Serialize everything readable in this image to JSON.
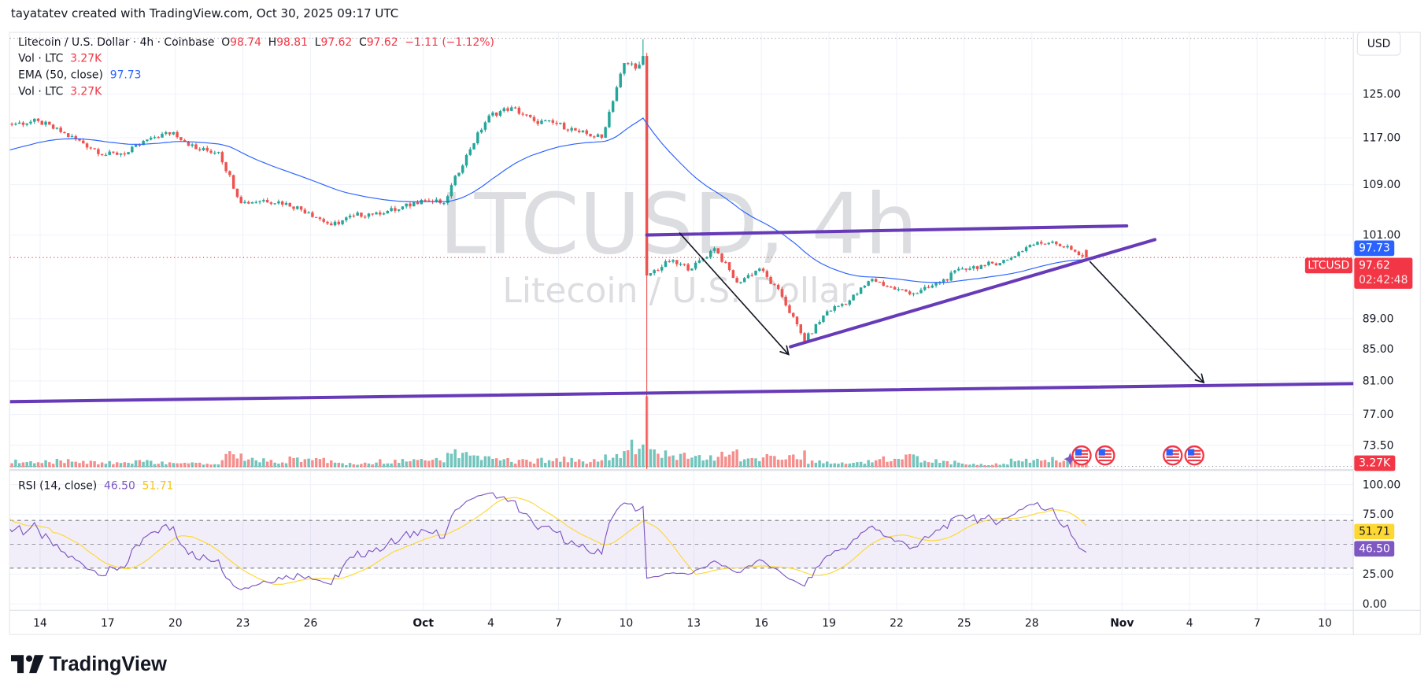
{
  "header": {
    "attribution": "tayatatev created with TradingView.com, Oct 30, 2025 09:17 UTC",
    "as_of": "2025-10-30T09:17"
  },
  "legend": {
    "symbol": "Litecoin / U.S. Dollar · 4h · Coinbase",
    "o_label": "O",
    "o": "98.74",
    "h_label": "H",
    "h": "98.81",
    "l_label": "L",
    "l": "97.62",
    "c_label": "C",
    "c": "97.62",
    "change": "−1.11 (−1.12%)",
    "vol_label": "Vol · LTC",
    "vol": "3.27K",
    "ema_label": "EMA (50, close)",
    "ema": "97.73",
    "vol2_label": "Vol · LTC",
    "vol2": "3.27K"
  },
  "currency_button": "USD",
  "watermark": {
    "ticker": "LTCUSD, 4h",
    "name": "Litecoin / U.S. Dollar"
  },
  "price_axis": {
    "scale": "log",
    "ticks": [
      125,
      117,
      109,
      101,
      89,
      85,
      81,
      77,
      73.5
    ],
    "ema_label": "97.73",
    "price_label": "97.62",
    "countdown": "02:42:48",
    "ticker_label": "LTCUSD",
    "volume_label": "3.27K"
  },
  "time_axis": [
    {
      "label": "14",
      "date": "2025-09-14"
    },
    {
      "label": "17",
      "date": "2025-09-17"
    },
    {
      "label": "20",
      "date": "2025-09-20"
    },
    {
      "label": "23",
      "date": "2025-09-23"
    },
    {
      "label": "26",
      "date": "2025-09-26"
    },
    {
      "label": "Oct",
      "date": "2025-10-01"
    },
    {
      "label": "4",
      "date": "2025-10-04"
    },
    {
      "label": "7",
      "date": "2025-10-07"
    },
    {
      "label": "10",
      "date": "2025-10-10"
    },
    {
      "label": "13",
      "date": "2025-10-13"
    },
    {
      "label": "16",
      "date": "2025-10-16"
    },
    {
      "label": "19",
      "date": "2025-10-19"
    },
    {
      "label": "22",
      "date": "2025-10-22"
    },
    {
      "label": "25",
      "date": "2025-10-25"
    },
    {
      "label": "28",
      "date": "2025-10-28"
    },
    {
      "label": "Nov",
      "date": "2025-11-01"
    },
    {
      "label": "4",
      "date": "2025-11-04"
    },
    {
      "label": "7",
      "date": "2025-11-07"
    },
    {
      "label": "10",
      "date": "2025-11-10"
    }
  ],
  "rsi": {
    "label": "RSI (14, close)",
    "value": "46.50",
    "ma_value": "51.71",
    "ticks": [
      "100.00",
      "75.00",
      "25.00",
      "0.00"
    ],
    "band": [
      30,
      70
    ]
  },
  "events": [
    {
      "icon": "us-flag-icon",
      "date": "2025-10-30T05:00"
    },
    {
      "icon": "us-flag-icon",
      "date": "2025-10-31T06:00"
    },
    {
      "icon": "us-flag-icon",
      "date": "2025-11-03T06:00"
    },
    {
      "icon": "us-flag-icon",
      "date": "2025-11-04T05:00"
    }
  ],
  "drawings": [
    {
      "type": "trendline",
      "name": "resistance-line",
      "color": "#673ab7",
      "from": {
        "date": "2025-10-10T22:00",
        "price": 101.0
      },
      "to": {
        "date": "2025-11-01T05:00",
        "price": 102.4
      }
    },
    {
      "type": "trendline",
      "name": "rising-support-line",
      "color": "#673ab7",
      "from": {
        "date": "2025-10-17T07:00",
        "price": 85.3
      },
      "to": {
        "date": "2025-11-02T11:00",
        "price": 100.3
      }
    },
    {
      "type": "trendline",
      "name": "long-support-line",
      "color": "#673ab7",
      "from": {
        "date": "2025-09-12T15:00",
        "price": 78.5
      },
      "to": {
        "date": "2025-11-14T14:00",
        "price": 80.8
      }
    },
    {
      "type": "arrow",
      "name": "down-arrow-past",
      "color": "#131722",
      "from": {
        "date": "2025-10-12T09:00",
        "price": 101.3
      },
      "to": {
        "date": "2025-10-17T05:00",
        "price": 84.3
      }
    },
    {
      "type": "arrow",
      "name": "down-arrow-projection",
      "color": "#131722",
      "from": {
        "date": "2025-10-30T14:00",
        "price": 97.0
      },
      "to": {
        "date": "2025-11-04T15:00",
        "price": 80.8
      }
    }
  ],
  "colors": {
    "up": "#26a69a",
    "down": "#ef5350",
    "ema": "#2962ff",
    "rsi": "#7e57c2",
    "rsi_ma": "#fdd835",
    "label_red": "#f23645",
    "label_blue": "#2962ff"
  },
  "chart_data": {
    "type": "candlestick",
    "interval": "4h",
    "symbol": "LTCUSD",
    "yscale": "log",
    "ylim": [
      73.5,
      135
    ],
    "last_candle": {
      "open": 98.74,
      "high": 98.81,
      "low": 97.62,
      "close": 97.62
    },
    "daily": [
      {
        "date": "2025-09-12",
        "close": 119.5,
        "volume": 5
      },
      {
        "date": "2025-09-13",
        "close": 120,
        "volume": 5
      },
      {
        "date": "2025-09-14",
        "close": 118,
        "volume": 5
      },
      {
        "date": "2025-09-15",
        "close": 116,
        "volume": 5
      },
      {
        "date": "2025-09-16",
        "close": 114,
        "volume": 4
      },
      {
        "date": "2025-09-17",
        "close": 114.5,
        "volume": 4
      },
      {
        "date": "2025-09-18",
        "close": 117,
        "volume": 5
      },
      {
        "date": "2025-09-19",
        "close": 118,
        "volume": 4
      },
      {
        "date": "2025-09-20",
        "close": 115,
        "volume": 3
      },
      {
        "date": "2025-09-21",
        "close": 114.5,
        "volume": 3
      },
      {
        "date": "2025-09-22",
        "close": 106,
        "volume": 10
      },
      {
        "date": "2025-09-23",
        "close": 106.5,
        "volume": 6
      },
      {
        "date": "2025-09-24",
        "close": 106,
        "volume": 5
      },
      {
        "date": "2025-09-25",
        "close": 104.5,
        "volume": 7
      },
      {
        "date": "2025-09-26",
        "close": 102.5,
        "volume": 6
      },
      {
        "date": "2025-09-27",
        "close": 104,
        "volume": 3
      },
      {
        "date": "2025-09-28",
        "close": 104.5,
        "volume": 3
      },
      {
        "date": "2025-09-29",
        "close": 105,
        "volume": 5
      },
      {
        "date": "2025-09-30",
        "close": 106.5,
        "volume": 5
      },
      {
        "date": "2025-10-01",
        "close": 106,
        "volume": 6
      },
      {
        "date": "2025-10-02",
        "close": 114,
        "volume": 11
      },
      {
        "date": "2025-10-03",
        "close": 121,
        "volume": 9
      },
      {
        "date": "2025-10-04",
        "close": 122.5,
        "volume": 6
      },
      {
        "date": "2025-10-05",
        "close": 120,
        "volume": 5
      },
      {
        "date": "2025-10-06",
        "close": 119.5,
        "volume": 6
      },
      {
        "date": "2025-10-07",
        "close": 118,
        "volume": 7
      },
      {
        "date": "2025-10-08",
        "close": 117,
        "volume": 5
      },
      {
        "date": "2025-10-09",
        "close": 131,
        "volume": 10
      },
      {
        "date": "2025-10-10",
        "close": 95,
        "high": 135.8,
        "low": 70,
        "volume": 17
      },
      {
        "date": "2025-10-11",
        "close": 97,
        "volume": 12
      },
      {
        "date": "2025-10-12",
        "close": 96,
        "volume": 9
      },
      {
        "date": "2025-10-13",
        "close": 99,
        "volume": 9
      },
      {
        "date": "2025-10-14",
        "close": 94,
        "volume": 11
      },
      {
        "date": "2025-10-15",
        "close": 96,
        "volume": 7
      },
      {
        "date": "2025-10-16",
        "close": 92,
        "volume": 8
      },
      {
        "date": "2025-10-17",
        "close": 86,
        "volume": 11
      },
      {
        "date": "2025-10-18",
        "close": 90,
        "volume": 5
      },
      {
        "date": "2025-10-19",
        "close": 91.5,
        "volume": 4
      },
      {
        "date": "2025-10-20",
        "close": 94.5,
        "volume": 5
      },
      {
        "date": "2025-10-21",
        "close": 93,
        "volume": 7
      },
      {
        "date": "2025-10-22",
        "close": 92.5,
        "volume": 8
      },
      {
        "date": "2025-10-23",
        "close": 94,
        "volume": 5
      },
      {
        "date": "2025-10-24",
        "close": 96,
        "volume": 4
      },
      {
        "date": "2025-10-25",
        "close": 96.5,
        "volume": 3
      },
      {
        "date": "2025-10-26",
        "close": 97.3,
        "volume": 3
      },
      {
        "date": "2025-10-27",
        "close": 99.5,
        "volume": 6
      },
      {
        "date": "2025-10-28",
        "close": 100,
        "volume": 7
      },
      {
        "date": "2025-10-29",
        "close": 98.5,
        "volume": 6
      },
      {
        "date": "2025-10-30",
        "close": 97.62,
        "volume": 3.27
      }
    ]
  },
  "footer": {
    "brand": "TradingView"
  }
}
